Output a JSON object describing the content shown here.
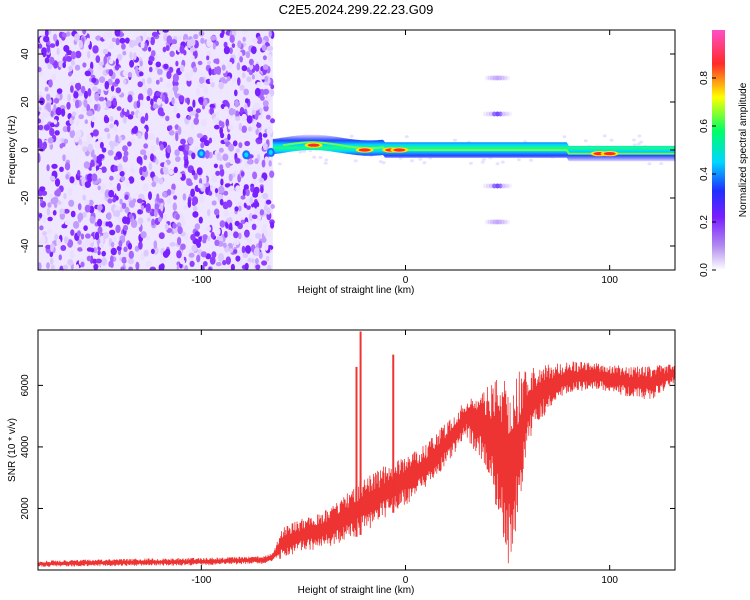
{
  "title": "C2E5.2024.299.22.23.G09",
  "colors": {
    "snr_line": "#ee3333",
    "colorbar": [
      "#ffffff",
      "#8a2be2",
      "#1f1fff",
      "#00d5ff",
      "#00ff7a",
      "#ffff00",
      "#ff3030"
    ]
  },
  "chart_data": [
    {
      "type": "heatmap",
      "name": "spectrogram",
      "xlabel": "Height of straight line (km)",
      "ylabel": "Frequency (Hz)",
      "xlim": [
        -180,
        132
      ],
      "ylim": [
        -50,
        50
      ],
      "xticks": [
        -100,
        0,
        100
      ],
      "yticks": [
        -40,
        -20,
        0,
        20,
        40
      ],
      "colorbar": {
        "label": "Normalized spectral amplitude",
        "range": [
          0,
          1
        ],
        "ticks": [
          0.0,
          0.2,
          0.4,
          0.6,
          0.8
        ]
      },
      "noise_region_x": [
        -180,
        -65
      ],
      "main_band": {
        "x_start": -65,
        "x_end": 132,
        "peaks": [
          [
            -45,
            2
          ],
          [
            -20,
            0
          ],
          [
            -7,
            0
          ],
          [
            -3,
            0
          ],
          [
            95,
            -1.5
          ],
          [
            100,
            -1.5
          ]
        ]
      },
      "sidebands": [
        {
          "x_center": 45,
          "y": 30,
          "width": 10
        },
        {
          "x_center": 45,
          "y": 15,
          "width": 12
        },
        {
          "x_center": 45,
          "y": -15,
          "width": 12
        },
        {
          "x_center": 45,
          "y": -30,
          "width": 10
        }
      ]
    },
    {
      "type": "line",
      "name": "snr",
      "xlabel": "Height of straight line (km)",
      "ylabel": "SNR (10 * v/v)",
      "xlim": [
        -180,
        132
      ],
      "ylim": [
        0,
        7800
      ],
      "xticks": [
        -100,
        0,
        100
      ],
      "yticks": [
        2000,
        4000,
        6000
      ],
      "envelope_x": [
        -180,
        -150,
        -100,
        -70,
        -65,
        -60,
        -50,
        -40,
        -30,
        -20,
        -10,
        0,
        10,
        20,
        30,
        40,
        45,
        50,
        55,
        60,
        70,
        80,
        90,
        100,
        110,
        120,
        132
      ],
      "envelope_upper": [
        300,
        350,
        400,
        450,
        550,
        1400,
        1700,
        1900,
        2400,
        3000,
        3400,
        3700,
        4100,
        4800,
        5600,
        6000,
        6200,
        6350,
        6450,
        6550,
        6700,
        6800,
        6750,
        6700,
        6600,
        6650,
        6700
      ],
      "envelope_lower": [
        100,
        120,
        150,
        200,
        250,
        400,
        600,
        700,
        900,
        1200,
        1700,
        2100,
        2600,
        3400,
        4300,
        3200,
        1800,
        100,
        1500,
        4200,
        5200,
        5700,
        5900,
        5800,
        5600,
        5500,
        6100
      ],
      "spikes": [
        {
          "x": -22,
          "y": 7750
        },
        {
          "x": -24,
          "y": 6600
        },
        {
          "x": -6,
          "y": 7000
        }
      ]
    }
  ]
}
